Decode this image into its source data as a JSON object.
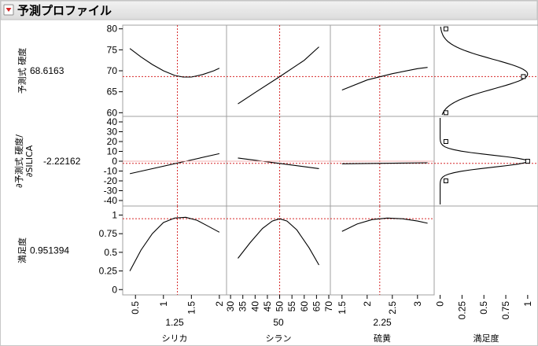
{
  "header": {
    "title": "予測プロファイル",
    "toggle_icon": "red-disclosure-triangle-icon"
  },
  "colors": {
    "curve": "#000000",
    "crosshair": "#d62728",
    "value": "#d62728",
    "frame": "#a0a0a0",
    "header_bg": "#e6e6e6"
  },
  "chart_data": {
    "type": "line",
    "factors": [
      {
        "name": "シリカ",
        "current": "1.25",
        "range": [
          0.3,
          2.1
        ],
        "ticks": [
          "0.5",
          "1",
          "1.5",
          "2"
        ],
        "tick_values": [
          0.5,
          1,
          1.5,
          2
        ]
      },
      {
        "name": "シラン",
        "current": "50",
        "range": [
          29,
          70
        ],
        "ticks": [
          "30",
          "35",
          "40",
          "45",
          "50",
          "55",
          "60",
          "65",
          "70"
        ],
        "tick_values": [
          30,
          35,
          40,
          45,
          50,
          55,
          60,
          65,
          70
        ]
      },
      {
        "name": "硫黄",
        "current": "2.25",
        "range": [
          1.3,
          3.3
        ],
        "ticks": [
          "1.5",
          "2",
          "2.5",
          "3"
        ],
        "tick_values": [
          1.5,
          2,
          2.5,
          3
        ]
      },
      {
        "name": "満足度",
        "range": [
          -0.05,
          1.1
        ],
        "ticks": [
          "0",
          "0.25",
          "0.5",
          "0.75",
          "1"
        ],
        "tick_values": [
          0,
          0.25,
          0.5,
          0.75,
          1
        ]
      }
    ],
    "responses": [
      {
        "name": "予測式 硬度",
        "value": "68.6163",
        "range": [
          59.5,
          80.5
        ],
        "ticks": [
          "60",
          "65",
          "70",
          "75",
          "80"
        ],
        "tick_values": [
          60,
          65,
          70,
          75,
          80
        ]
      },
      {
        "name": "∂予測式 硬度/∂SILICA",
        "name_lines": [
          "∂予測式 硬度/",
          "∂SILICA"
        ],
        "value": "-2.22162",
        "range": [
          -44,
          44
        ],
        "ticks": [
          "-40",
          "-30",
          "-20",
          "-10",
          "0",
          "10",
          "20",
          "30",
          "40"
        ],
        "tick_values": [
          -40,
          -30,
          -20,
          -10,
          0,
          10,
          20,
          30,
          40
        ]
      },
      {
        "name": "満足度",
        "value": "0.951394",
        "range": [
          -0.05,
          1.1
        ],
        "ticks": [
          "0",
          "0.25",
          "0.5",
          "0.75",
          "1"
        ],
        "tick_values": [
          0,
          0.25,
          0.5,
          0.75,
          1
        ]
      }
    ],
    "current_x": [
      1.25,
      50,
      2.25
    ],
    "current_y": [
      68.6163,
      -2.22162,
      0.951394
    ],
    "traces": [
      [
        {
          "x": [
            0.4,
            0.6,
            0.8,
            1.0,
            1.2,
            1.35,
            1.5,
            1.7,
            1.9,
            2.0
          ],
          "y": [
            75.3,
            73.3,
            71.5,
            70.0,
            68.9,
            68.5,
            68.5,
            69.1,
            70.0,
            70.6
          ]
        },
        {
          "x": [
            33,
            40,
            50,
            60,
            66
          ],
          "y": [
            62.1,
            64.8,
            68.6,
            72.5,
            75.7
          ]
        },
        {
          "x": [
            1.5,
            2.0,
            2.5,
            3.0,
            3.2
          ],
          "y": [
            65.4,
            67.8,
            69.3,
            70.5,
            70.8
          ]
        }
      ],
      [
        {
          "x": [
            0.4,
            2.0
          ],
          "y": [
            -12.7,
            7.7
          ]
        },
        {
          "x": [
            33,
            66
          ],
          "y": [
            3.3,
            -7.5
          ]
        },
        {
          "x": [
            1.5,
            3.2
          ],
          "y": [
            -2.6,
            -1.6
          ]
        }
      ],
      [
        {
          "x": [
            0.4,
            0.6,
            0.8,
            1.0,
            1.2,
            1.4,
            1.6,
            1.8,
            2.0
          ],
          "y": [
            0.25,
            0.53,
            0.75,
            0.9,
            0.96,
            0.97,
            0.93,
            0.85,
            0.77
          ]
        },
        {
          "x": [
            33,
            38,
            43,
            47,
            50,
            53,
            57,
            62,
            66
          ],
          "y": [
            0.42,
            0.63,
            0.82,
            0.92,
            0.95,
            0.92,
            0.8,
            0.56,
            0.33
          ]
        },
        {
          "x": [
            1.5,
            1.8,
            2.1,
            2.4,
            2.7,
            3.0,
            3.2
          ],
          "y": [
            0.78,
            0.88,
            0.94,
            0.96,
            0.95,
            0.92,
            0.89
          ]
        }
      ]
    ],
    "desirability": [
      {
        "points": [
          {
            "y": 60,
            "d": 0.066
          },
          {
            "y": 68.6163,
            "d": 0.951
          },
          {
            "y": 80,
            "d": 0.066
          }
        ],
        "center": 69.2,
        "width": 5.0
      },
      {
        "points": [
          {
            "y": -20,
            "d": 0.066
          },
          {
            "y": 0,
            "d": 1.0
          },
          {
            "y": 20,
            "d": 0.066
          }
        ],
        "center": 0,
        "width": 8.6
      }
    ]
  }
}
